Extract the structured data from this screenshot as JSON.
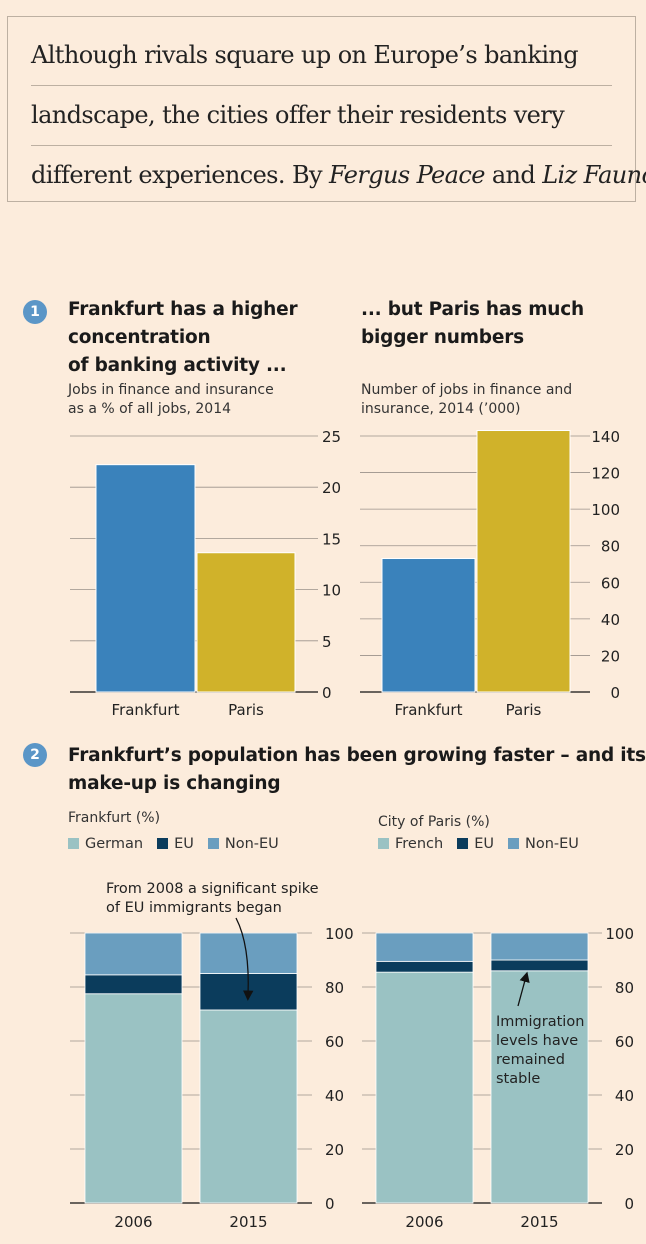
{
  "intro": {
    "line1": "Although rivals square up on  Europe’s banking",
    "line2": "landscape, the cities offer their residents very",
    "line3_prefix": "different experiences. By ",
    "author1": "Fergus Peace",
    "line3_and": " and ",
    "author2": "Liz Faunce"
  },
  "section1": {
    "number": "1",
    "left_title": "Frankfurt has a higher concentration of banking activity ...",
    "left_title_lines": [
      "Frankfurt has a higher",
      "concentration",
      "of banking activity ..."
    ],
    "left_subtitle_lines": [
      "Jobs in finance and insurance",
      "as a % of all jobs, 2014"
    ],
    "right_title_lines": [
      "... but Paris has much",
      "bigger numbers"
    ],
    "right_subtitle_lines": [
      "Number of jobs in finance and",
      "insurance, 2014 (’000)"
    ]
  },
  "section2": {
    "number": "2",
    "title_lines": [
      "Frankfurt’s population has been growing faster – and its",
      "make-up is changing"
    ],
    "left_label": "Frankfurt (%)",
    "right_label": "City of Paris (%)",
    "left_legend": [
      "German",
      "EU",
      "Non-EU"
    ],
    "right_legend": [
      "French",
      "EU",
      "Non-EU"
    ]
  },
  "colors": {
    "frankfurt": "#3a82bb",
    "paris": "#d0b22a",
    "native": "#9ac2c3",
    "eu": "#0b3c5c",
    "non_eu": "#6a9ebf",
    "badge": "#5b96c7",
    "background": "#fcecdc"
  },
  "chart_data": [
    {
      "type": "bar",
      "title": "Frankfurt has a higher concentration of banking activity ...",
      "subtitle": "Jobs in finance and insurance as a % of all jobs, 2014",
      "categories": [
        "Frankfurt",
        "Paris"
      ],
      "values": [
        22.2,
        13.6
      ],
      "ylim": [
        0,
        25
      ],
      "yticks": [
        0,
        5,
        10,
        15,
        20,
        25
      ],
      "grid": true
    },
    {
      "type": "bar",
      "title": "... but Paris has much bigger numbers",
      "subtitle": "Number of jobs in finance and insurance, 2014 (’000)",
      "categories": [
        "Frankfurt",
        "Paris"
      ],
      "values": [
        73,
        143
      ],
      "ylim": [
        0,
        140
      ],
      "yticks": [
        0,
        20,
        40,
        60,
        80,
        100,
        120,
        140
      ],
      "grid": true
    },
    {
      "type": "bar",
      "stacked": true,
      "title": "Frankfurt (%)",
      "categories": [
        "2006",
        "2015"
      ],
      "series": [
        {
          "name": "German",
          "values": [
            77.5,
            71.5
          ]
        },
        {
          "name": "EU",
          "values": [
            7.0,
            13.5
          ]
        },
        {
          "name": "Non-EU",
          "values": [
            15.5,
            15.0
          ]
        }
      ],
      "ylim": [
        0,
        100
      ],
      "yticks": [
        0,
        20,
        40,
        60,
        80,
        100
      ],
      "annotation": "From 2008 a significant spike of EU immigrants began"
    },
    {
      "type": "bar",
      "stacked": true,
      "title": "City of Paris (%)",
      "categories": [
        "2006",
        "2015"
      ],
      "series": [
        {
          "name": "French",
          "values": [
            85.5,
            86.0
          ]
        },
        {
          "name": "EU",
          "values": [
            4.0,
            4.0
          ]
        },
        {
          "name": "Non-EU",
          "values": [
            10.5,
            10.0
          ]
        }
      ],
      "ylim": [
        0,
        100
      ],
      "yticks": [
        0,
        20,
        40,
        60,
        80,
        100
      ],
      "annotation": "Immigration levels have remained stable"
    }
  ]
}
